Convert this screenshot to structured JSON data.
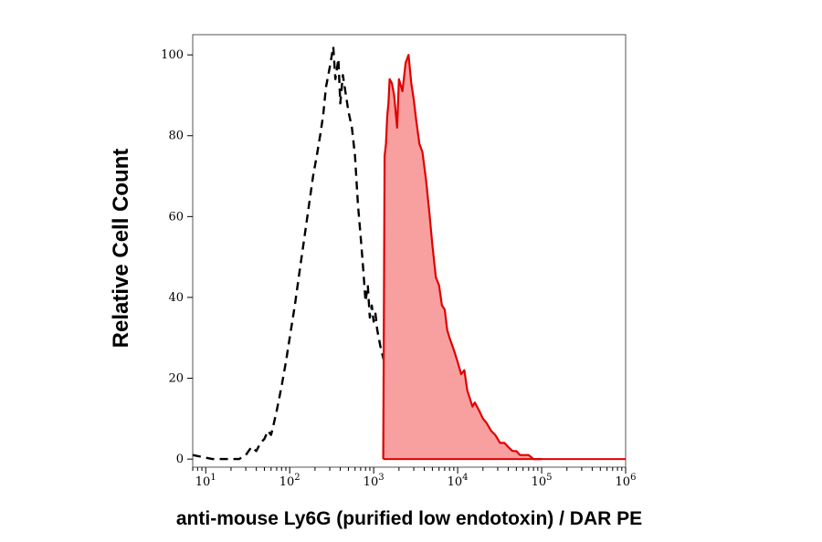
{
  "chart_data": {
    "type": "area",
    "title": "",
    "xlabel": "anti-mouse Ly6G (purified low endotoxin) / DAR PE",
    "ylabel": "Relative Cell Count",
    "x_scale": "log",
    "xlim": [
      7,
      1000000
    ],
    "ylim": [
      -2,
      105
    ],
    "grid": false,
    "legend": "none",
    "y_ticks": [
      0,
      20,
      40,
      60,
      80,
      100
    ],
    "x_ticks": [
      {
        "base": "10",
        "exp": "1",
        "value": 10
      },
      {
        "base": "10",
        "exp": "2",
        "value": 100
      },
      {
        "base": "10",
        "exp": "3",
        "value": 1000
      },
      {
        "base": "10",
        "exp": "4",
        "value": 10000
      },
      {
        "base": "10",
        "exp": "5",
        "value": 100000
      },
      {
        "base": "10",
        "exp": "6",
        "value": 1000000
      }
    ],
    "series": [
      {
        "style": "dashed-outline",
        "color": "#000000",
        "x": [
          7,
          12,
          18,
          25,
          30,
          35,
          40,
          45,
          50,
          55,
          60,
          65,
          70,
          80,
          90,
          100,
          115,
          130,
          150,
          170,
          190,
          210,
          230,
          250,
          270,
          300,
          330,
          350,
          380,
          400,
          430,
          460,
          500,
          550,
          600,
          650,
          700,
          750,
          800,
          850,
          900,
          950,
          1000,
          1050,
          1100,
          1150,
          1200,
          1300,
          1500,
          1800,
          2200
        ],
        "y": [
          1,
          0,
          0,
          0,
          1,
          3,
          2,
          4,
          5,
          7,
          6,
          9,
          12,
          18,
          24,
          30,
          38,
          46,
          55,
          63,
          70,
          75,
          80,
          85,
          92,
          97,
          102,
          94,
          99,
          88,
          95,
          91,
          86,
          82,
          75,
          63,
          55,
          47,
          39,
          43,
          35,
          38,
          34,
          36,
          32,
          30,
          28,
          25,
          20,
          12,
          4
        ]
      },
      {
        "style": "filled",
        "color": "#e00000",
        "fill": "#f8a0a0",
        "x": [
          1300,
          1350,
          1400,
          1450,
          1500,
          1550,
          1650,
          1750,
          1900,
          2000,
          2200,
          2400,
          2600,
          2800,
          3000,
          3200,
          3500,
          3800,
          4200,
          4600,
          5000,
          5500,
          6000,
          6500,
          7000,
          7500,
          8000,
          9000,
          10000,
          11000,
          12000,
          13000,
          14000,
          15000,
          16000,
          18000,
          20000,
          22000,
          25000,
          28000,
          32000,
          36000,
          40000,
          45000,
          50000,
          55000,
          60000,
          70000,
          80000,
          90000,
          100000
        ],
        "y": [
          0,
          75,
          78,
          85,
          88,
          94,
          93,
          90,
          82,
          94,
          91,
          98,
          100,
          93,
          89,
          84,
          78,
          76,
          69,
          61,
          53,
          45,
          43,
          38,
          37,
          32,
          30,
          27,
          24,
          21,
          22,
          17,
          15,
          13,
          14,
          12,
          10,
          9,
          7,
          6,
          4,
          4,
          3,
          2,
          2,
          1,
          1,
          1,
          0,
          0,
          0
        ]
      }
    ]
  }
}
